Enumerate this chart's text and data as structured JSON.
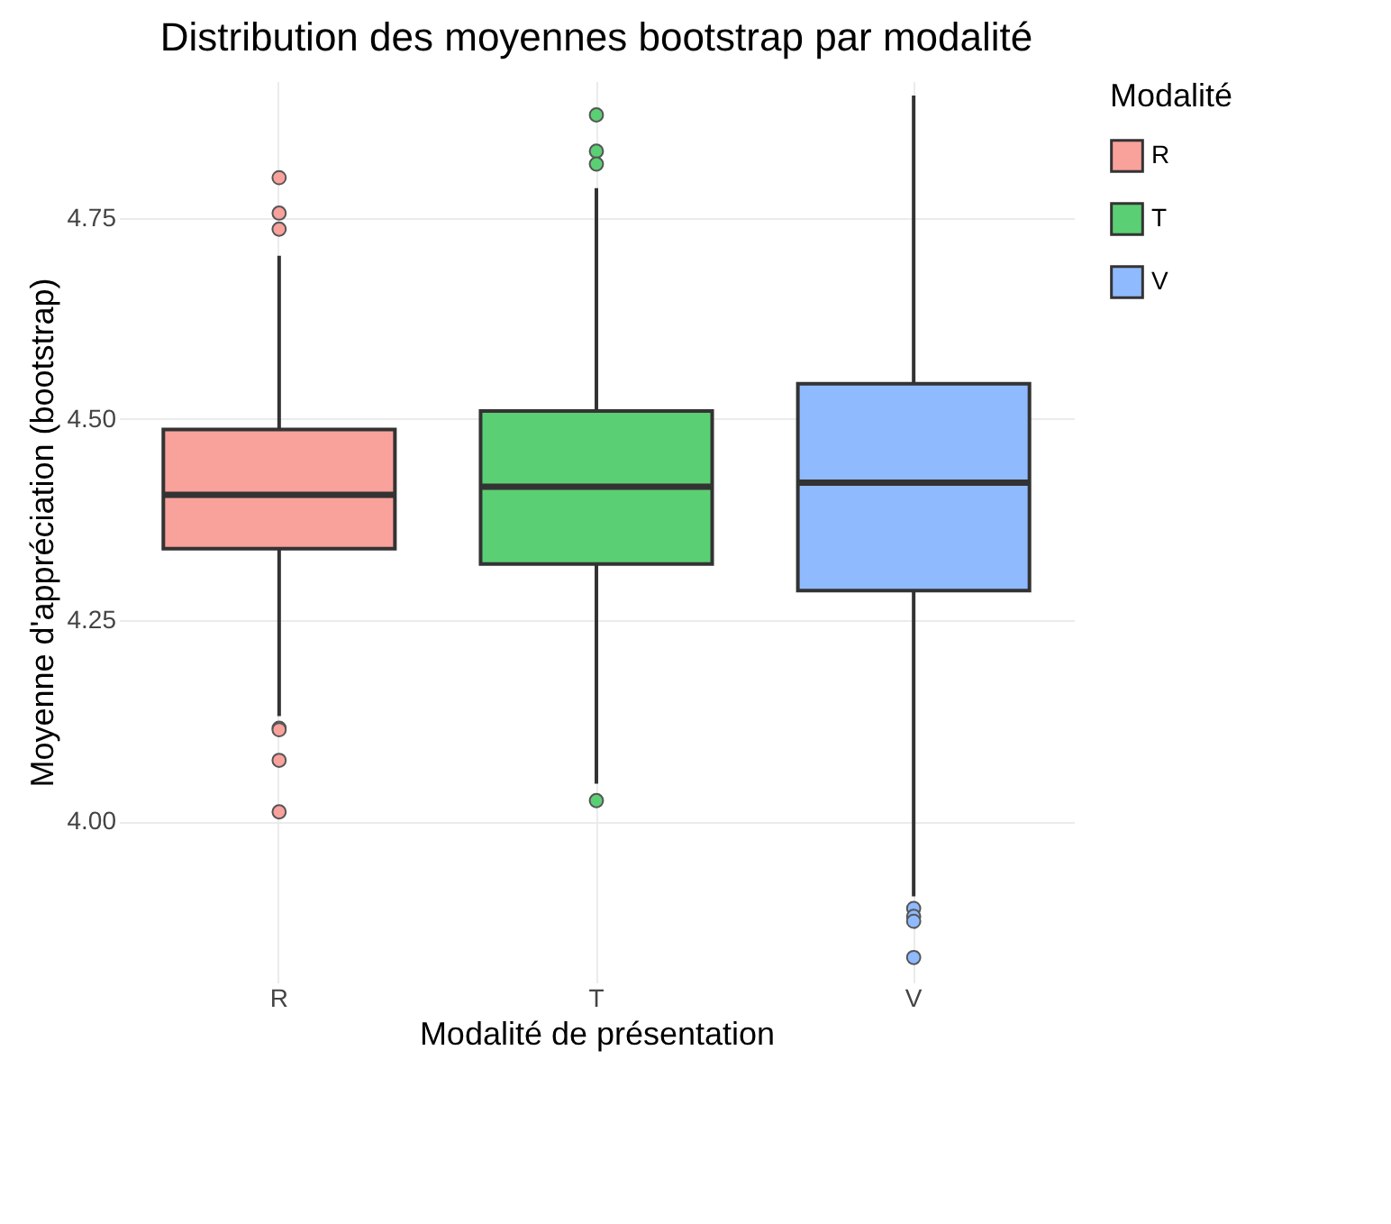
{
  "chart_data": {
    "type": "box",
    "title": "Distribution des moyennes bootstrap par modalité",
    "xlabel": "Modalité de présentation",
    "ylabel": "Moyenne d'appréciation (bootstrap)",
    "legend_title": "Modalité",
    "categories": [
      "R",
      "T",
      "V"
    ],
    "series": [
      {
        "name": "R",
        "color": "#f9a19b",
        "boxes": [
          {
            "low": 4.131,
            "q1": 4.339,
            "median": 4.406,
            "q3": 4.487,
            "high": 4.703,
            "outliers": [
              4.8,
              4.756,
              4.736,
              4.116,
              4.114,
              4.076,
              4.012
            ]
          },
          null,
          null
        ]
      },
      {
        "name": "T",
        "color": "#5bcf74",
        "boxes": [
          null,
          {
            "low": 4.047,
            "q1": 4.32,
            "median": 4.416,
            "q3": 4.51,
            "high": 4.787,
            "outliers": [
              4.878,
              4.833,
              4.817,
              4.026
            ]
          },
          null
        ]
      },
      {
        "name": "V",
        "color": "#8fbafe",
        "boxes": [
          null,
          null,
          {
            "low": 3.907,
            "q1": 4.287,
            "median": 4.421,
            "q3": 4.544,
            "high": 4.902,
            "outliers": [
              3.892,
              3.882,
              3.876,
              3.831
            ]
          }
        ]
      }
    ],
    "ylim": [
      3.8,
      4.92
    ],
    "yticks": [
      {
        "value": 4,
        "label": "4.00"
      },
      {
        "value": 4.25,
        "label": "4.25"
      },
      {
        "value": 4.5,
        "label": "4.50"
      },
      {
        "value": 4.75,
        "label": "4.75"
      }
    ],
    "grid": true,
    "legend": "right"
  }
}
